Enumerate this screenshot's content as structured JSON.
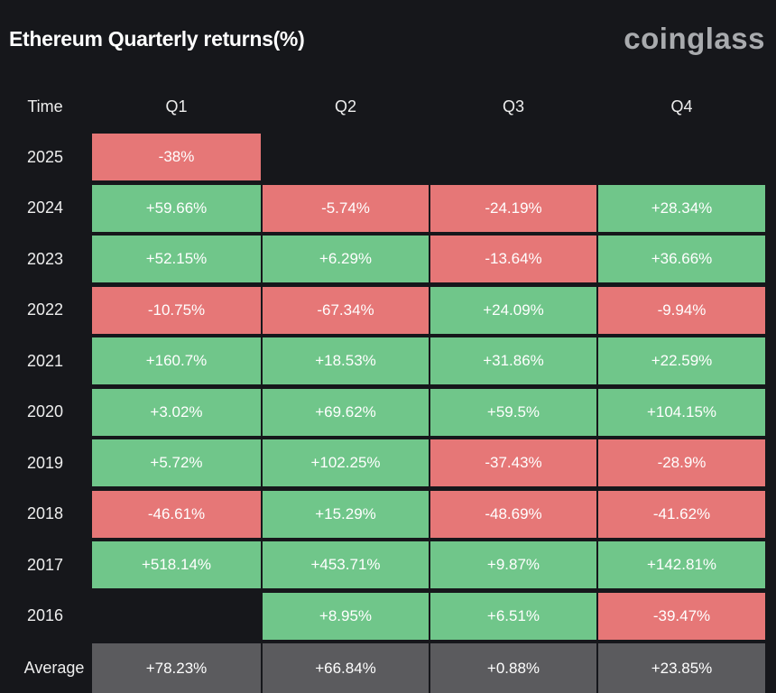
{
  "header": {
    "title": "Ethereum Quarterly returns(%)",
    "brand": "coinglass"
  },
  "table": {
    "columns": [
      "Time",
      "Q1",
      "Q2",
      "Q3",
      "Q4"
    ],
    "rows": [
      [
        "2025",
        "-38%",
        null,
        null,
        null
      ],
      [
        "2024",
        "+59.66%",
        "-5.74%",
        "-24.19%",
        "+28.34%"
      ],
      [
        "2023",
        "+52.15%",
        "+6.29%",
        "-13.64%",
        "+36.66%"
      ],
      [
        "2022",
        "-10.75%",
        "-67.34%",
        "+24.09%",
        "-9.94%"
      ],
      [
        "2021",
        "+160.7%",
        "+18.53%",
        "+31.86%",
        "+22.59%"
      ],
      [
        "2020",
        "+3.02%",
        "+69.62%",
        "+59.5%",
        "+104.15%"
      ],
      [
        "2019",
        "+5.72%",
        "+102.25%",
        "-37.43%",
        "-28.9%"
      ],
      [
        "2018",
        "-46.61%",
        "+15.29%",
        "-48.69%",
        "-41.62%"
      ],
      [
        "2017",
        "+518.14%",
        "+453.71%",
        "+9.87%",
        "+142.81%"
      ],
      [
        "2016",
        null,
        "+8.95%",
        "+6.51%",
        "-39.47%"
      ]
    ],
    "average": [
      "Average",
      "+78.23%",
      "+66.84%",
      "+0.88%",
      "+23.85%"
    ],
    "positive_color": "#70c68a",
    "negative_color": "#e67777",
    "average_color": "#5b5b5e"
  }
}
